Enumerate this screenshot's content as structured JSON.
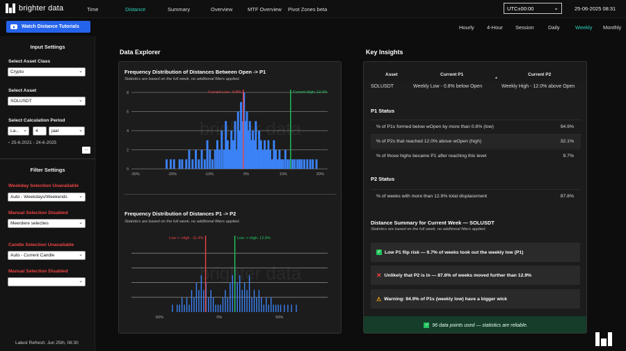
{
  "app": {
    "logo_text": "brighter data"
  },
  "nav": {
    "items": [
      "Time",
      "Distance",
      "Summary",
      "Overview",
      "MTF Overview",
      "Pivot Zones beta"
    ],
    "active": "Distance",
    "timezone": "UTC±00:00",
    "datetime": "25-06-2025 08:31"
  },
  "toolbar": {
    "tutorial_label": "Watch Distance Tutorials",
    "timeframes": [
      "Hourly",
      "4-Hour",
      "Session",
      "Daily",
      "Weekly",
      "Monthly"
    ],
    "active_timeframe": "Weekly"
  },
  "sidebar": {
    "input_title": "Input Settings",
    "asset_class_label": "Select Asset Class",
    "asset_class_value": "Crypto",
    "asset_label": "Select Asset",
    "asset_value": "SOLUSDT",
    "period_label": "Select Calculation Period",
    "period_unit": "La...",
    "period_count": "4",
    "period_type": "jaar",
    "date_range": "25-6-2021 - 24-6-2025",
    "dots": "...",
    "filter_title": "Filter Settings",
    "weekday_label": "Weekday Selection Unavailable",
    "weekday_value": "Auto - Weekdays/Weekends",
    "manual1_label": "Manual Selection Disabled",
    "manual1_value": "Meerdere selecties",
    "candle_label": "Candle Selection Unavailable",
    "candle_value": "Auto - Current Candle",
    "manual2_label": "Manual Selection Disabled",
    "manual2_value": "",
    "latest_refresh": "Latest Refresh: Jun 25th, 08:30"
  },
  "explorer": {
    "title": "Data Explorer",
    "watermark": "brighter data",
    "chart1_title": "Frequency Distribution of Distances Between Open -> P1",
    "chart1_sub": "Statistics are based on the full week, no additional filters applied.",
    "chart2_title": "Frequency Distribution of Distances P1 -> P2",
    "chart2_sub": "Statistics are based on the full week, no additional filters applied."
  },
  "chart_data": [
    {
      "type": "bar",
      "title": "Frequency Distribution of Distances Between Open -> P1",
      "x_ticks": [
        "-30%",
        "-20%",
        "-10%",
        "0%",
        "10%",
        "20%"
      ],
      "x_tick_values": [
        -30,
        -20,
        -10,
        0,
        10,
        20
      ],
      "y_ticks": [
        0,
        2,
        4,
        6,
        8
      ],
      "xlim": [
        -31,
        22
      ],
      "ylim": [
        0,
        8
      ],
      "annotations": [
        {
          "label": "Current Low: -0.8%",
          "x": -0.8,
          "color": "#ef4444"
        },
        {
          "label": "Current High: 12.0%",
          "x": 12.0,
          "color": "#22c55e"
        }
      ],
      "bins": [
        [
          -21.5,
          1
        ],
        [
          -20.4,
          1
        ],
        [
          -19.5,
          1
        ],
        [
          -18.0,
          1
        ],
        [
          -17.3,
          1
        ],
        [
          -16.2,
          1
        ],
        [
          -15.4,
          2
        ],
        [
          -14.5,
          1
        ],
        [
          -13.6,
          2
        ],
        [
          -12.8,
          1
        ],
        [
          -12.0,
          2
        ],
        [
          -11.2,
          1
        ],
        [
          -10.5,
          3
        ],
        [
          -9.8,
          2
        ],
        [
          -9.1,
          1
        ],
        [
          -8.4,
          2
        ],
        [
          -7.8,
          3
        ],
        [
          -7.2,
          2
        ],
        [
          -6.6,
          4
        ],
        [
          -6.0,
          2
        ],
        [
          -5.5,
          5
        ],
        [
          -5.0,
          3
        ],
        [
          -4.5,
          2
        ],
        [
          -4.0,
          4
        ],
        [
          -3.5,
          3
        ],
        [
          -3.0,
          5
        ],
        [
          -2.6,
          2
        ],
        [
          -2.2,
          6
        ],
        [
          -1.8,
          4
        ],
        [
          -1.4,
          7
        ],
        [
          -1.0,
          5
        ],
        [
          -0.6,
          8
        ],
        [
          -0.2,
          5
        ],
        [
          0.2,
          6
        ],
        [
          0.6,
          4
        ],
        [
          1.0,
          5
        ],
        [
          1.4,
          3
        ],
        [
          1.8,
          4
        ],
        [
          2.2,
          3
        ],
        [
          2.6,
          5
        ],
        [
          3.0,
          2
        ],
        [
          3.5,
          4
        ],
        [
          4.0,
          3
        ],
        [
          4.5,
          2
        ],
        [
          5.0,
          3
        ],
        [
          5.5,
          2
        ],
        [
          6.0,
          3
        ],
        [
          6.5,
          2
        ],
        [
          7.0,
          1
        ],
        [
          7.5,
          3
        ],
        [
          8.0,
          2
        ],
        [
          8.5,
          1
        ],
        [
          9.0,
          2
        ],
        [
          9.5,
          1
        ],
        [
          10.0,
          1
        ],
        [
          10.6,
          2
        ],
        [
          11.2,
          1
        ],
        [
          11.8,
          1
        ],
        [
          12.5,
          1
        ],
        [
          13.1,
          1
        ],
        [
          13.8,
          1
        ],
        [
          14.4,
          1
        ],
        [
          15.0,
          1
        ],
        [
          15.7,
          1
        ],
        [
          16.5,
          1
        ],
        [
          17.3,
          1
        ],
        [
          18.0,
          1
        ],
        [
          19.0,
          1
        ]
      ]
    },
    {
      "type": "bar",
      "title": "Frequency Distribution of Distances P1 -> P2",
      "x_ticks": [
        "-50%",
        "0%",
        "50%"
      ],
      "x_tick_values": [
        -50,
        0,
        50
      ],
      "xlim": [
        -73,
        90
      ],
      "ylim": [
        0,
        10
      ],
      "annotations": [
        {
          "label": "Low <- High: -11.4%",
          "x": -11.4,
          "color": "#ef4444"
        },
        {
          "label": "Low -> High: 12.9%",
          "x": 12.9,
          "color": "#22c55e"
        }
      ],
      "bins": [
        [
          -39,
          1
        ],
        [
          -35,
          1
        ],
        [
          -33,
          1
        ],
        [
          -31,
          2
        ],
        [
          -29,
          1
        ],
        [
          -27,
          2
        ],
        [
          -25,
          1
        ],
        [
          -23,
          3
        ],
        [
          -21,
          2
        ],
        [
          -19,
          4
        ],
        [
          -17,
          3
        ],
        [
          -15,
          5
        ],
        [
          -13,
          3
        ],
        [
          -11,
          4
        ],
        [
          -9,
          2
        ],
        [
          -7,
          3
        ],
        [
          -5,
          2
        ],
        [
          -3,
          1
        ],
        [
          -1,
          1
        ],
        [
          1,
          1
        ],
        [
          3,
          2
        ],
        [
          5,
          3
        ],
        [
          7,
          2
        ],
        [
          9,
          4
        ],
        [
          11,
          5
        ],
        [
          13,
          6
        ],
        [
          15,
          4
        ],
        [
          17,
          5
        ],
        [
          19,
          3
        ],
        [
          21,
          4
        ],
        [
          23,
          3
        ],
        [
          25,
          5
        ],
        [
          27,
          2
        ],
        [
          29,
          3
        ],
        [
          31,
          2
        ],
        [
          33,
          3
        ],
        [
          35,
          2
        ],
        [
          37,
          1
        ],
        [
          39,
          2
        ],
        [
          41,
          1
        ],
        [
          43,
          2
        ],
        [
          45,
          1
        ],
        [
          47,
          1
        ],
        [
          49,
          1
        ],
        [
          51,
          1
        ],
        [
          54,
          1
        ],
        [
          57,
          1
        ],
        [
          60,
          1
        ],
        [
          64,
          1
        ]
      ]
    }
  ],
  "insights": {
    "title": "Key Insights",
    "table_headers": [
      "Asset",
      "Current P1",
      "Current P2"
    ],
    "table_row": [
      "SOLUSDT",
      "Weekly Low - 0.8% below Open",
      "Weekly High - 12.0% above Open"
    ],
    "p1_title": "P1 Status",
    "p1_rows": [
      {
        "label": "% of P1s formed below wOpen by more than 0.8% (low)",
        "value": "94.9%"
      },
      {
        "label": "% of P2s that reached 12.0% above wOpen (high)",
        "value": "32.1%"
      },
      {
        "label": "% of those highs became P1 after reaching this level",
        "value": "9.7%"
      }
    ],
    "p2_title": "P2 Status",
    "p2_rows": [
      {
        "label": "% of weeks with more than 12.9% total displacement",
        "value": "87.8%"
      }
    ],
    "summary_title": "Distance Summary for Current Week — SOLUSDT",
    "summary_sub": "Statistics are based on the full week, no additional filters applied.",
    "cards": [
      "Low P1 flip risk — 9.7% of weeks took out the weekly low (P1)",
      "Unlikely that P2 is in — 87.8% of weeks moved further than 12.9%",
      "Warning: 94.9% of P1s (weekly low) have a bigger wick"
    ],
    "footer": "96 data points used — statistics are reliable."
  },
  "colors": {
    "accent": "#2dd4bf",
    "bar": "#3b82f6",
    "low": "#ef4444",
    "high": "#22c55e",
    "button": "#2563eb"
  }
}
